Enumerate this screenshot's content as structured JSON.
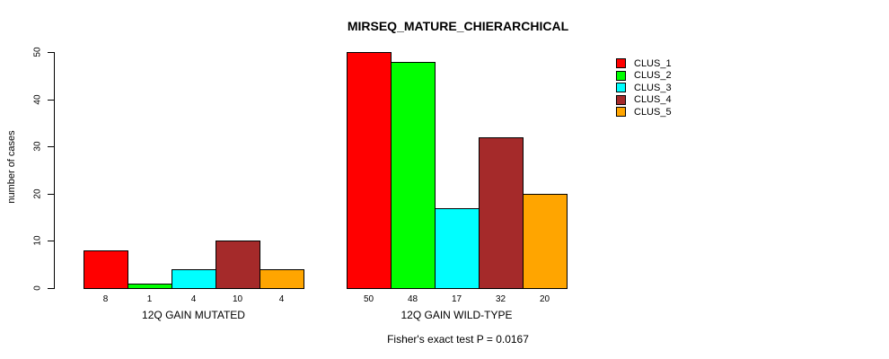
{
  "chart_data": {
    "type": "bar",
    "title": "MIRSEQ_MATURE_CHIERARCHICAL",
    "ylabel": "number of cases",
    "ylim": [
      0,
      50
    ],
    "yticks": [
      0,
      10,
      20,
      30,
      40,
      50
    ],
    "grid": false,
    "bar_value_labels_shown": true,
    "legend_position": "top-right",
    "series": [
      {
        "name": "CLUS_1",
        "color": "#FF0000"
      },
      {
        "name": "CLUS_2",
        "color": "#00FF00"
      },
      {
        "name": "CLUS_3",
        "color": "#00FFFF"
      },
      {
        "name": "CLUS_4",
        "color": "#A52A2A"
      },
      {
        "name": "CLUS_5",
        "color": "#FFA500"
      }
    ],
    "groups": [
      {
        "label": "12Q GAIN MUTATED",
        "values": [
          8,
          1,
          4,
          10,
          4
        ]
      },
      {
        "label": "12Q GAIN WILD-TYPE",
        "values": [
          50,
          48,
          17,
          32,
          20
        ]
      }
    ],
    "caption": "Fisher's exact test P = 0.0167"
  }
}
